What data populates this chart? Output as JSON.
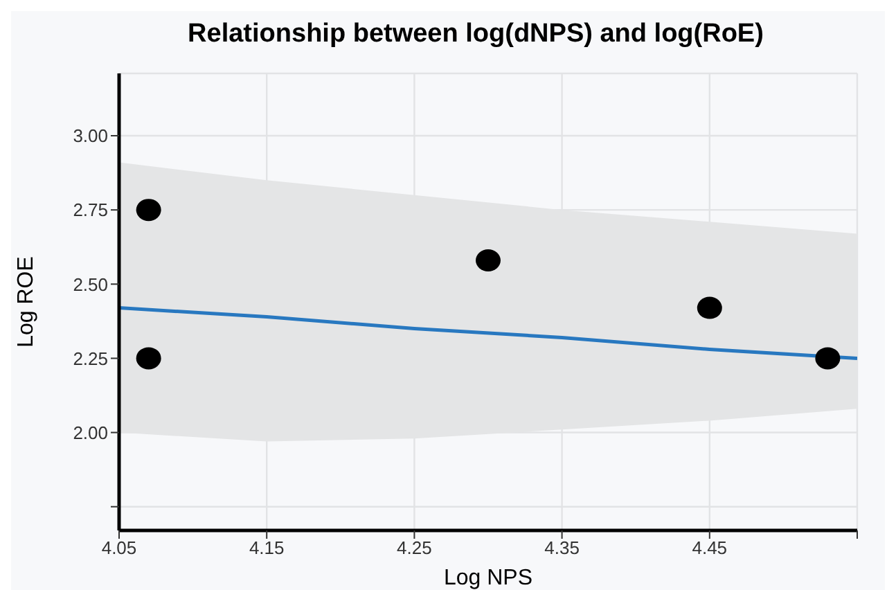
{
  "chart_data": {
    "type": "scatter",
    "title": "Relationship between log(dNPS) and log(RoE)",
    "xlabel": "Log NPS",
    "ylabel": "Log ROE",
    "xlim": [
      4.05,
      4.55
    ],
    "xticks": [
      4.05,
      4.15,
      4.25,
      4.35,
      4.45,
      {
        "value": 4.55,
        "label": null
      }
    ],
    "ylim": [
      1.67,
      3.21
    ],
    "yticks": [
      {
        "value": 1.75,
        "label": null
      },
      {
        "value": 2,
        "label": "2.00"
      },
      {
        "value": 2.25,
        "label": "2.25"
      },
      {
        "value": 2.5,
        "label": "2.50"
      },
      {
        "value": 2.75,
        "label": "2.75"
      },
      {
        "value": 3,
        "label": "3.00"
      }
    ],
    "grid": true,
    "legend": false,
    "series": [
      {
        "color": "#000000",
        "marker": "circle",
        "x": [
          4.07,
          4.07,
          4.3,
          4.45,
          4.53
        ],
        "values": [
          2.75,
          2.25,
          2.58,
          2.42,
          2.25
        ]
      },
      {
        "type": "line",
        "color": "#2878c0",
        "x": [
          4.05,
          4.15,
          4.25,
          4.35,
          4.45,
          4.55
        ],
        "values": [
          2.42,
          2.39,
          2.35,
          2.32,
          2.28,
          2.25
        ],
        "lower": [
          2.0,
          1.97,
          1.98,
          2.01,
          2.04,
          2.08
        ],
        "upper": [
          2.91,
          2.85,
          2.8,
          2.75,
          2.71,
          2.67
        ]
      }
    ]
  }
}
